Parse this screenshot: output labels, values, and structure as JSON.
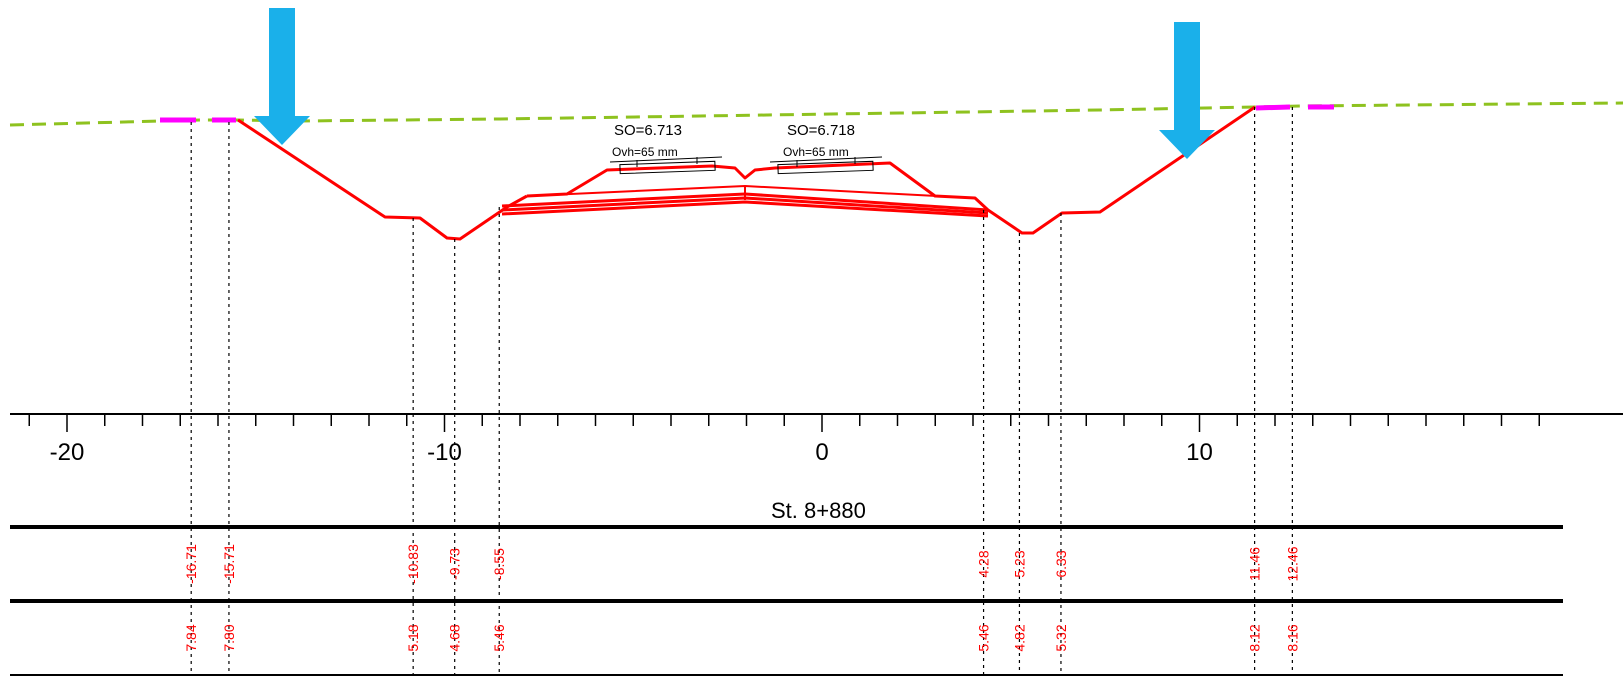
{
  "axis": {
    "tick_labels": [
      {
        "value": -20,
        "label": "-20"
      },
      {
        "value": -10,
        "label": "-10"
      },
      {
        "value": 0,
        "label": "0"
      },
      {
        "value": 10,
        "label": "10"
      }
    ]
  },
  "station": {
    "label": "St. 8+880"
  },
  "lanes": [
    {
      "so": "SO=6.713",
      "ovh": "Ovh=65 mm"
    },
    {
      "so": "SO=6.718",
      "ovh": "Ovh=65 mm"
    }
  ],
  "measurements": [
    {
      "offset": "-16.71",
      "level": "7.84"
    },
    {
      "offset": "-15.71",
      "level": "7.80"
    },
    {
      "offset": "-10.83",
      "level": "5.18"
    },
    {
      "offset": "-9.73",
      "level": "4.68"
    },
    {
      "offset": "-8.55",
      "level": "5.46"
    },
    {
      "offset": "4.28",
      "level": "5.46"
    },
    {
      "offset": "5.23",
      "level": "4.82"
    },
    {
      "offset": "6.33",
      "level": "5.32"
    },
    {
      "offset": "11.46",
      "level": "8.12"
    },
    {
      "offset": "12.46",
      "level": "8.16"
    }
  ],
  "colors": {
    "terrain": "#8ec21f",
    "design": "#ff0000",
    "marker": "#ff00ff",
    "arrow": "#1ab0ea",
    "values": "#ff0000"
  },
  "icons": [
    "down-arrow-icon",
    "down-arrow-icon"
  ]
}
